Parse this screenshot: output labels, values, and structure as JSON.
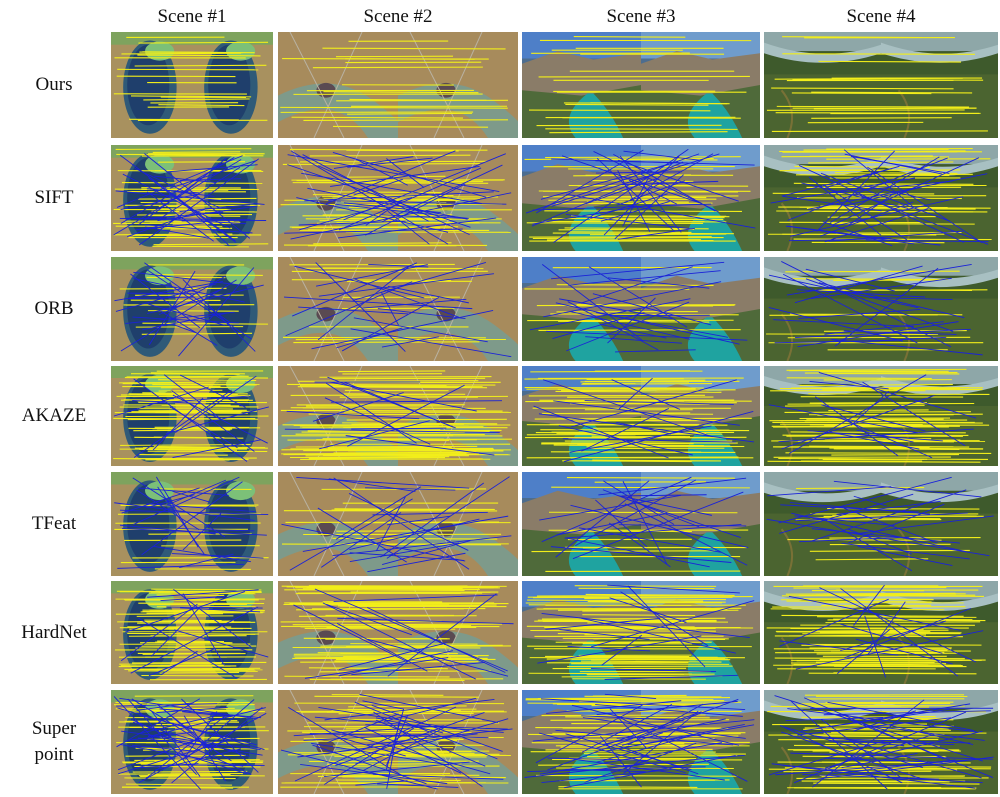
{
  "figure": {
    "columns": [
      "Scene #1",
      "Scene #2",
      "Scene #3",
      "Scene #4"
    ],
    "rows": [
      {
        "label_lines": [
          "Ours"
        ],
        "match_profile": "clean"
      },
      {
        "label_lines": [
          "SIFT"
        ],
        "match_profile": "mixed"
      },
      {
        "label_lines": [
          "ORB"
        ],
        "match_profile": "sparse"
      },
      {
        "label_lines": [
          "AKAZE"
        ],
        "match_profile": "dense"
      },
      {
        "label_lines": [
          "TFeat"
        ],
        "match_profile": "sparse"
      },
      {
        "label_lines": [
          "HardNet"
        ],
        "match_profile": "dense"
      },
      {
        "label_lines": [
          "Super",
          "point"
        ],
        "match_profile": "noisy"
      }
    ],
    "colors": {
      "correct_match": "#f2ee1a",
      "incorrect_match": "#1a22d8"
    }
  }
}
